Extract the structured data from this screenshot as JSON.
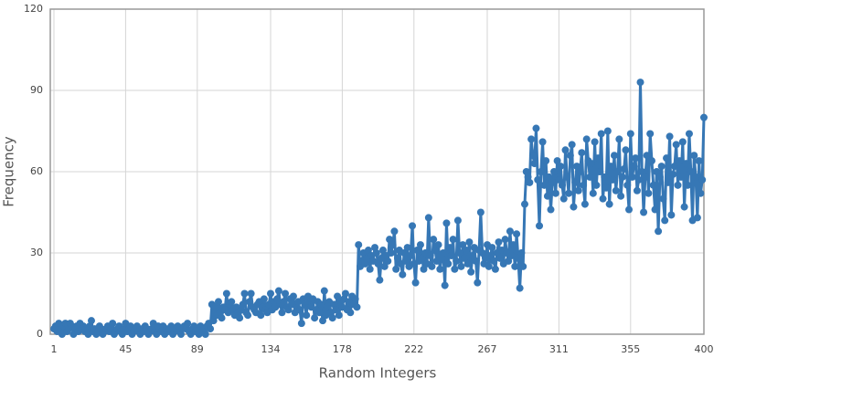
{
  "chart_data": {
    "type": "line",
    "x_label": "Random Integers",
    "y_label": "Frequency",
    "xlim": [
      1,
      400
    ],
    "xticks": [
      1,
      45,
      89,
      134,
      178,
      222,
      267,
      311,
      355,
      400
    ],
    "ylim": [
      0,
      120
    ],
    "yticks": [
      0,
      30,
      60,
      90,
      120
    ],
    "grid": true,
    "series": [
      {
        "color": "#3677b5",
        "x": [
          1,
          2,
          3,
          4,
          5,
          6,
          7,
          8,
          9,
          10,
          11,
          12,
          13,
          14,
          15,
          16,
          17,
          18,
          19,
          20,
          21,
          22,
          23,
          24,
          25,
          26,
          27,
          28,
          29,
          30,
          31,
          32,
          33,
          34,
          35,
          36,
          37,
          38,
          39,
          40,
          41,
          42,
          43,
          44,
          45,
          46,
          47,
          48,
          49,
          50,
          51,
          52,
          53,
          54,
          55,
          56,
          57,
          58,
          59,
          60,
          61,
          62,
          63,
          64,
          65,
          66,
          67,
          68,
          69,
          70,
          71,
          72,
          73,
          74,
          75,
          76,
          77,
          78,
          79,
          80,
          81,
          82,
          83,
          84,
          85,
          86,
          87,
          88,
          89,
          90,
          91,
          92,
          93,
          94,
          95,
          96,
          97,
          98,
          99,
          100,
          101,
          102,
          103,
          104,
          105,
          106,
          107,
          108,
          109,
          110,
          111,
          112,
          113,
          114,
          115,
          116,
          117,
          118,
          119,
          120,
          121,
          122,
          123,
          124,
          125,
          126,
          127,
          128,
          129,
          130,
          131,
          132,
          133,
          134,
          135,
          136,
          137,
          138,
          139,
          140,
          141,
          142,
          143,
          144,
          145,
          146,
          147,
          148,
          149,
          150,
          151,
          152,
          153,
          154,
          155,
          156,
          157,
          158,
          159,
          160,
          161,
          162,
          163,
          164,
          165,
          166,
          167,
          168,
          169,
          170,
          171,
          172,
          173,
          174,
          175,
          176,
          177,
          178,
          179,
          180,
          181,
          182,
          183,
          184,
          185,
          186,
          187,
          188,
          189,
          190,
          191,
          192,
          193,
          194,
          195,
          196,
          197,
          198,
          199,
          200,
          201,
          202,
          203,
          204,
          205,
          206,
          207,
          208,
          209,
          210,
          211,
          212,
          213,
          214,
          215,
          216,
          217,
          218,
          219,
          220,
          221,
          222,
          223,
          224,
          225,
          226,
          227,
          228,
          229,
          230,
          231,
          232,
          233,
          234,
          235,
          236,
          237,
          238,
          239,
          240,
          241,
          242,
          243,
          244,
          245,
          246,
          247,
          248,
          249,
          250,
          251,
          252,
          253,
          254,
          255,
          256,
          257,
          258,
          259,
          260,
          261,
          262,
          263,
          264,
          265,
          266,
          267,
          268,
          269,
          270,
          271,
          272,
          273,
          274,
          275,
          276,
          277,
          278,
          279,
          280,
          281,
          282,
          283,
          284,
          285,
          286,
          287,
          288,
          289,
          290,
          291,
          292,
          293,
          294,
          295,
          296,
          297,
          298,
          299,
          300,
          301,
          302,
          303,
          304,
          305,
          306,
          307,
          308,
          309,
          310,
          311,
          312,
          313,
          314,
          315,
          316,
          317,
          318,
          319,
          320,
          321,
          322,
          323,
          324,
          325,
          326,
          327,
          328,
          329,
          330,
          331,
          332,
          333,
          334,
          335,
          336,
          337,
          338,
          339,
          340,
          341,
          342,
          343,
          344,
          345,
          346,
          347,
          348,
          349,
          350,
          351,
          352,
          353,
          354,
          355,
          356,
          357,
          358,
          359,
          360,
          361,
          362,
          363,
          364,
          365,
          366,
          367,
          368,
          369,
          370,
          371,
          372,
          373,
          374,
          375,
          376,
          377,
          378,
          379,
          380,
          381,
          382,
          383,
          384,
          385,
          386,
          387,
          388,
          389,
          390,
          391,
          392,
          393,
          394,
          395,
          396,
          397,
          398,
          399,
          400
        ],
        "values": [
          2,
          3,
          1,
          4,
          2,
          0,
          3,
          4,
          1,
          2,
          4,
          3,
          0,
          2,
          3,
          1,
          4,
          2,
          3,
          1,
          2,
          0,
          3,
          5,
          1,
          2,
          0,
          1,
          3,
          2,
          0,
          1,
          2,
          3,
          1,
          2,
          4,
          0,
          1,
          2,
          3,
          1,
          0,
          2,
          4,
          1,
          2,
          3,
          0,
          1,
          2,
          3,
          1,
          0,
          2,
          1,
          3,
          2,
          0,
          1,
          2,
          4,
          1,
          0,
          3,
          2,
          1,
          3,
          0,
          2,
          1,
          2,
          3,
          0,
          1,
          2,
          3,
          1,
          0,
          2,
          3,
          2,
          4,
          1,
          0,
          2,
          3,
          1,
          2,
          0,
          3,
          1,
          2,
          0,
          3,
          4,
          2,
          11,
          5,
          10,
          7,
          12,
          8,
          6,
          10,
          9,
          15,
          8,
          11,
          12,
          9,
          7,
          10,
          8,
          6,
          9,
          11,
          15,
          8,
          7,
          12,
          15,
          10,
          9,
          8,
          11,
          12,
          7,
          10,
          13,
          9,
          8,
          11,
          15,
          9,
          12,
          10,
          13,
          16,
          11,
          8,
          12,
          15,
          10,
          9,
          13,
          11,
          14,
          8,
          10,
          12,
          9,
          4,
          13,
          11,
          7,
          14,
          12,
          10,
          13,
          6,
          9,
          12,
          8,
          11,
          5,
          16,
          7,
          10,
          12,
          8,
          6,
          11,
          9,
          14,
          7,
          12,
          10,
          13,
          15,
          9,
          12,
          8,
          14,
          11,
          13,
          10,
          33,
          25,
          27,
          30,
          26,
          28,
          31,
          24,
          29,
          27,
          32,
          30,
          26,
          20,
          28,
          31,
          25,
          29,
          27,
          35,
          30,
          33,
          38,
          24,
          28,
          31,
          26,
          22,
          30,
          27,
          32,
          25,
          29,
          40,
          26,
          19,
          31,
          27,
          33,
          28,
          24,
          30,
          26,
          43,
          29,
          25,
          35,
          31,
          27,
          33,
          24,
          28,
          30,
          18,
          41,
          26,
          32,
          29,
          35,
          24,
          27,
          42,
          30,
          25,
          33,
          28,
          31,
          26,
          34,
          23,
          29,
          32,
          27,
          19,
          31,
          45,
          30,
          26,
          28,
          33,
          25,
          29,
          32,
          27,
          24,
          30,
          34,
          28,
          31,
          26,
          35,
          30,
          27,
          38,
          29,
          33,
          25,
          37,
          28,
          17,
          30,
          25,
          48,
          60,
          58,
          56,
          72,
          66,
          63,
          76,
          57,
          40,
          60,
          71,
          55,
          64,
          51,
          58,
          46,
          56,
          60,
          52,
          64,
          57,
          62,
          55,
          50,
          68,
          58,
          52,
          66,
          70,
          47,
          56,
          62,
          53,
          60,
          67,
          55,
          48,
          72,
          64,
          58,
          63,
          52,
          71,
          55,
          65,
          60,
          74,
          50,
          58,
          54,
          75,
          48,
          62,
          57,
          66,
          53,
          60,
          72,
          51,
          58,
          61,
          68,
          55,
          46,
          74,
          58,
          62,
          65,
          53,
          57,
          93,
          60,
          45,
          58,
          66,
          52,
          74,
          64,
          55,
          46,
          60,
          38,
          58,
          62,
          50,
          42,
          65,
          56,
          73,
          44,
          59,
          62,
          70,
          55,
          64,
          58,
          71,
          47,
          63,
          55,
          74,
          60,
          42,
          66,
          58,
          43,
          64,
          52,
          57,
          80
        ]
      }
    ]
  }
}
